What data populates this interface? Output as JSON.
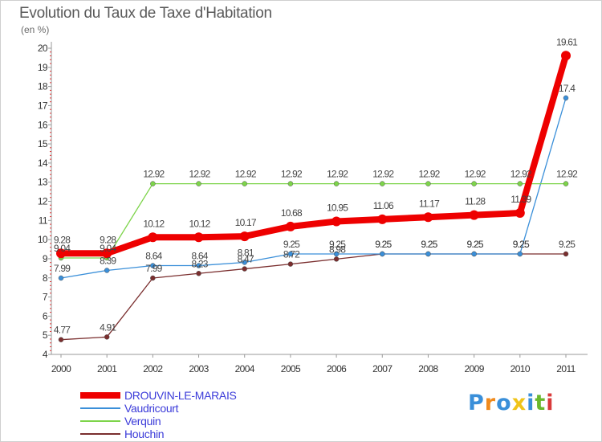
{
  "title": "Evolution du Taux de Taxe d'Habitation",
  "unit": "(en %)",
  "brand": {
    "text": "Proxiti",
    "letters": [
      {
        "ch": "P",
        "color": "#3a8fd9"
      },
      {
        "ch": "r",
        "color": "#f08a1c"
      },
      {
        "ch": "o",
        "color": "#3a8fd9"
      },
      {
        "ch": "x",
        "color": "#f0c419"
      },
      {
        "ch": "i",
        "color": "#3a8fd9"
      },
      {
        "ch": "t",
        "color": "#6ab82e"
      },
      {
        "ch": "i",
        "color": "#d93a3a"
      }
    ]
  },
  "chart_data": {
    "type": "line",
    "title": "Evolution du Taux de Taxe d'Habitation",
    "ylabel": "(en %)",
    "xlabel": "",
    "x": [
      "2000",
      "2001",
      "2002",
      "2003",
      "2004",
      "2005",
      "2006",
      "2007",
      "2008",
      "2009",
      "2010",
      "2011"
    ],
    "ylim": [
      4,
      20
    ],
    "yticks": [
      4,
      5,
      6,
      7,
      8,
      9,
      10,
      11,
      12,
      13,
      14,
      15,
      16,
      17,
      18,
      19,
      20
    ],
    "grid": false,
    "legend": "bottom-left",
    "series": [
      {
        "name": "DROUVIN-LE-MARAIS",
        "color": "#ee0000",
        "values": [
          9.28,
          9.28,
          10.12,
          10.12,
          10.17,
          10.68,
          10.95,
          11.06,
          11.17,
          11.28,
          11.39,
          19.61
        ],
        "labels": [
          "9.28",
          "9.28",
          "10.12",
          "10.12",
          "10.17",
          "10.68",
          "10.95",
          "11.06",
          "11.17",
          "11.28",
          "11.39",
          "19.61"
        ]
      },
      {
        "name": "Vaudricourt",
        "color": "#3a8fd9",
        "values": [
          7.99,
          8.39,
          8.64,
          8.64,
          8.81,
          9.25,
          9.25,
          9.25,
          9.25,
          9.25,
          9.25,
          17.4
        ],
        "labels": [
          "7.99",
          "8.39",
          "8.64",
          "8.64",
          "8.81",
          "9.25",
          "9.25",
          "9.25",
          "9.25",
          "9.25",
          "9.25",
          "17.4"
        ]
      },
      {
        "name": "Verquin",
        "color": "#7dd44a",
        "values": [
          9.04,
          9.04,
          12.92,
          12.92,
          12.92,
          12.92,
          12.92,
          12.92,
          12.92,
          12.92,
          12.92,
          12.92
        ],
        "labels": [
          "9.04",
          "9.04",
          "12.92",
          "12.92",
          "12.92",
          "12.92",
          "12.92",
          "12.92",
          "12.92",
          "12.92",
          "12.92",
          "12.92"
        ]
      },
      {
        "name": "Houchin",
        "color": "#7a2e2e",
        "values": [
          4.77,
          4.91,
          7.99,
          8.23,
          8.47,
          8.72,
          8.98,
          9.25,
          9.25,
          9.25,
          9.25,
          9.25
        ],
        "labels": [
          "4.77",
          "4.91",
          "7.99",
          "8.23",
          "8.47",
          "8.72",
          "8.98",
          "9.25",
          "9.25",
          "9.25",
          "9.25",
          "9.25"
        ]
      }
    ]
  }
}
